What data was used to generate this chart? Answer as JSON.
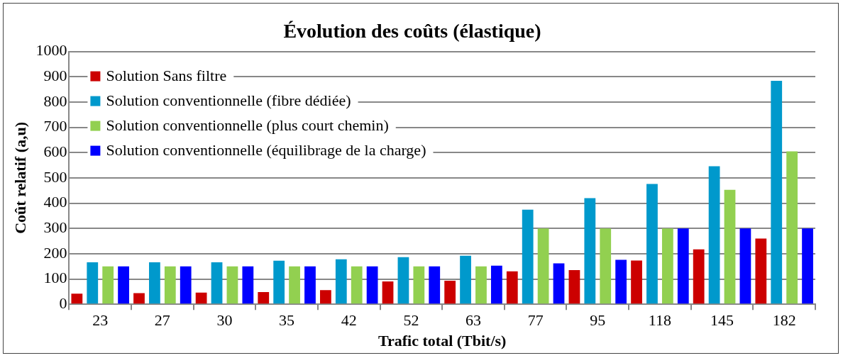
{
  "chart_data": {
    "type": "bar",
    "title": "Évolution des coûts (élastique)",
    "xlabel": "Trafic total (Tbit/s)",
    "ylabel": "Coût relatif (a,u)",
    "categories": [
      "23",
      "27",
      "30",
      "35",
      "42",
      "52",
      "63",
      "77",
      "95",
      "118",
      "145",
      "182"
    ],
    "series": [
      {
        "name": "Solution Sans filtre",
        "color": "#cc0000",
        "values": [
          42,
          44,
          46,
          48,
          56,
          90,
          93,
          130,
          135,
          173,
          217,
          260
        ]
      },
      {
        "name": "Solution conventionnelle (fibre dédiée)",
        "color": "#0099cc",
        "values": [
          166,
          166,
          166,
          172,
          178,
          186,
          192,
          374,
          420,
          476,
          546,
          884
        ]
      },
      {
        "name": "Solution conventionnelle (plus court chemin)",
        "color": "#92d050",
        "values": [
          150,
          150,
          150,
          150,
          150,
          150,
          150,
          300,
          300,
          300,
          453,
          605
        ]
      },
      {
        "name": "Solution conventionnelle (équilibrage de la charge)",
        "color": "#0000ff",
        "values": [
          150,
          150,
          150,
          150,
          150,
          150,
          153,
          162,
          176,
          300,
          300,
          300
        ]
      }
    ],
    "ylim": [
      0,
      1000
    ],
    "yticks": [
      0,
      100,
      200,
      300,
      400,
      500,
      600,
      700,
      800,
      900,
      1000
    ],
    "grid": "y",
    "legend": "top left"
  }
}
